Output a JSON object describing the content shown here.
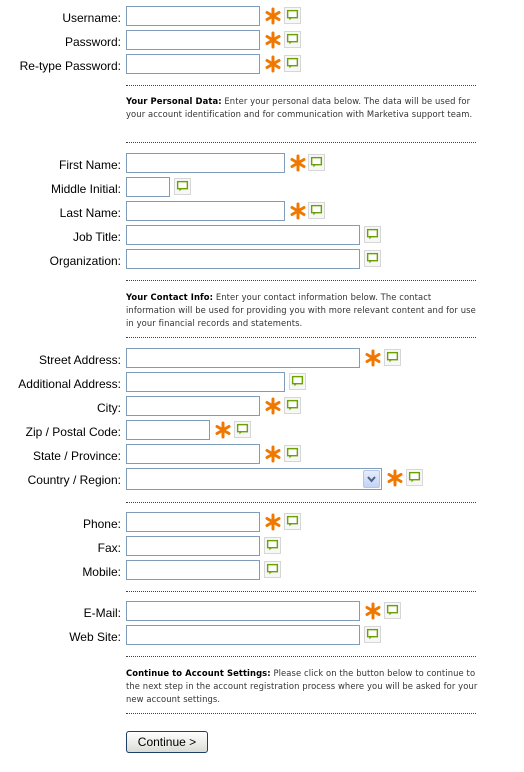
{
  "account": {
    "username_label": "Username:",
    "password_label": "Password:",
    "retype_password_label": "Re-type Password:"
  },
  "personal_info": {
    "heading": "Your Personal Data:",
    "text": " Enter your personal data below. The data will be used for your account identification and for communication with Marketiva support team."
  },
  "personal": {
    "first_name_label": "First Name:",
    "middle_initial_label": "Middle Initial:",
    "last_name_label": "Last Name:",
    "job_title_label": "Job Title:",
    "organization_label": "Organization:"
  },
  "contact_info": {
    "heading": "Your Contact Info:",
    "text": " Enter your contact information below. The contact information will be used for providing you with more relevant content and for use in your financial records and statements."
  },
  "address": {
    "street_label": "Street Address:",
    "additional_label": "Additional Address:",
    "city_label": "City:",
    "zip_label": "Zip / Postal Code:",
    "state_label": "State / Province:",
    "country_label": "Country / Region:",
    "country_value": ""
  },
  "phones": {
    "phone_label": "Phone:",
    "fax_label": "Fax:",
    "mobile_label": "Mobile:"
  },
  "web": {
    "email_label": "E-Mail:",
    "website_label": "Web Site:"
  },
  "continue_info": {
    "heading": "Continue to Account Settings:",
    "text": " Please click on the button below to continue to the next step in the account registration process where you will be asked for your new account settings."
  },
  "continue_button_label": "Continue >",
  "icons": {
    "required": "required-asterisk-icon",
    "hint": "speech-bubble-hint-icon"
  },
  "colors": {
    "required": "#f07800",
    "hint": "#6aa300",
    "input_border": "#7f9db9",
    "button_border": "#1d3f66"
  }
}
